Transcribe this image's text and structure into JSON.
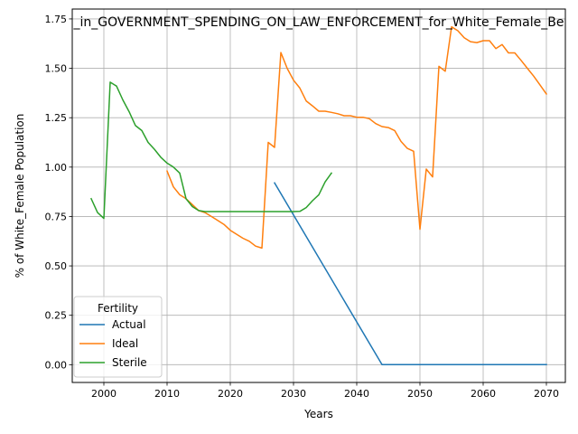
{
  "chart_data": {
    "type": "line",
    "title": "_in_GOVERNMENT_SPENDING_ON_LAW_ENFORCEMENT_for_White_Female_Be",
    "xlabel": "Years",
    "ylabel": "% of White_Female Population",
    "xlim": [
      1995,
      2073
    ],
    "ylim": [
      -0.09,
      1.8
    ],
    "x_ticks": [
      2000,
      2010,
      2020,
      2030,
      2040,
      2050,
      2060,
      2070
    ],
    "y_ticks": [
      0.0,
      0.25,
      0.5,
      0.75,
      1.0,
      1.25,
      1.5,
      1.75
    ],
    "grid": true,
    "legend": {
      "title": "Fertility",
      "placement": "lower-left"
    },
    "series": [
      {
        "name": "Actual",
        "color": "#1f77b4",
        "points": [
          [
            2027,
            0.92
          ],
          [
            2044,
            0.0
          ],
          [
            2070,
            0.0
          ]
        ]
      },
      {
        "name": "Ideal",
        "color": "#ff7f0e",
        "points": [
          [
            2010,
            0.98
          ],
          [
            2011,
            0.9
          ],
          [
            2012,
            0.86
          ],
          [
            2013,
            0.84
          ],
          [
            2014,
            0.81
          ],
          [
            2015,
            0.78
          ],
          [
            2016,
            0.77
          ],
          [
            2017,
            0.75
          ],
          [
            2018,
            0.73
          ],
          [
            2019,
            0.71
          ],
          [
            2020,
            0.68
          ],
          [
            2021,
            0.66
          ],
          [
            2022,
            0.64
          ],
          [
            2023,
            0.625
          ],
          [
            2024,
            0.6
          ],
          [
            2025,
            0.59
          ],
          [
            2026,
            1.125
          ],
          [
            2027,
            1.1
          ],
          [
            2028,
            1.58
          ],
          [
            2029,
            1.5
          ],
          [
            2030,
            1.44
          ],
          [
            2031,
            1.4
          ],
          [
            2032,
            1.335
          ],
          [
            2033,
            1.31
          ],
          [
            2034,
            1.283
          ],
          [
            2035,
            1.283
          ],
          [
            2036,
            1.277
          ],
          [
            2037,
            1.27
          ],
          [
            2038,
            1.26
          ],
          [
            2039,
            1.26
          ],
          [
            2040,
            1.252
          ],
          [
            2041,
            1.252
          ],
          [
            2042,
            1.245
          ],
          [
            2043,
            1.22
          ],
          [
            2044,
            1.205
          ],
          [
            2045,
            1.2
          ],
          [
            2046,
            1.185
          ],
          [
            2047,
            1.13
          ],
          [
            2048,
            1.095
          ],
          [
            2049,
            1.08
          ],
          [
            2050,
            0.685
          ],
          [
            2051,
            0.99
          ],
          [
            2052,
            0.95
          ],
          [
            2053,
            1.51
          ],
          [
            2054,
            1.485
          ],
          [
            2055,
            1.71
          ],
          [
            2056,
            1.69
          ],
          [
            2057,
            1.655
          ],
          [
            2058,
            1.635
          ],
          [
            2059,
            1.63
          ],
          [
            2060,
            1.64
          ],
          [
            2061,
            1.64
          ],
          [
            2062,
            1.6
          ],
          [
            2063,
            1.62
          ],
          [
            2064,
            1.578
          ],
          [
            2065,
            1.578
          ],
          [
            2066,
            1.54
          ],
          [
            2067,
            1.5
          ],
          [
            2068,
            1.46
          ],
          [
            2069,
            1.415
          ],
          [
            2070,
            1.37
          ]
        ]
      },
      {
        "name": "Sterile",
        "color": "#2ca02c",
        "points": [
          [
            1998,
            0.84
          ],
          [
            1999,
            0.77
          ],
          [
            2000,
            0.74
          ],
          [
            2001,
            1.43
          ],
          [
            2002,
            1.41
          ],
          [
            2003,
            1.34
          ],
          [
            2004,
            1.28
          ],
          [
            2005,
            1.21
          ],
          [
            2006,
            1.185
          ],
          [
            2007,
            1.125
          ],
          [
            2008,
            1.09
          ],
          [
            2009,
            1.05
          ],
          [
            2010,
            1.02
          ],
          [
            2011,
            1.0
          ],
          [
            2012,
            0.97
          ],
          [
            2013,
            0.84
          ],
          [
            2014,
            0.8
          ],
          [
            2015,
            0.78
          ],
          [
            2016,
            0.775
          ],
          [
            2020,
            0.775
          ],
          [
            2025,
            0.775
          ],
          [
            2030,
            0.775
          ],
          [
            2031,
            0.776
          ],
          [
            2032,
            0.795
          ],
          [
            2033,
            0.83
          ],
          [
            2034,
            0.86
          ],
          [
            2035,
            0.925
          ],
          [
            2036,
            0.97
          ]
        ]
      }
    ]
  }
}
